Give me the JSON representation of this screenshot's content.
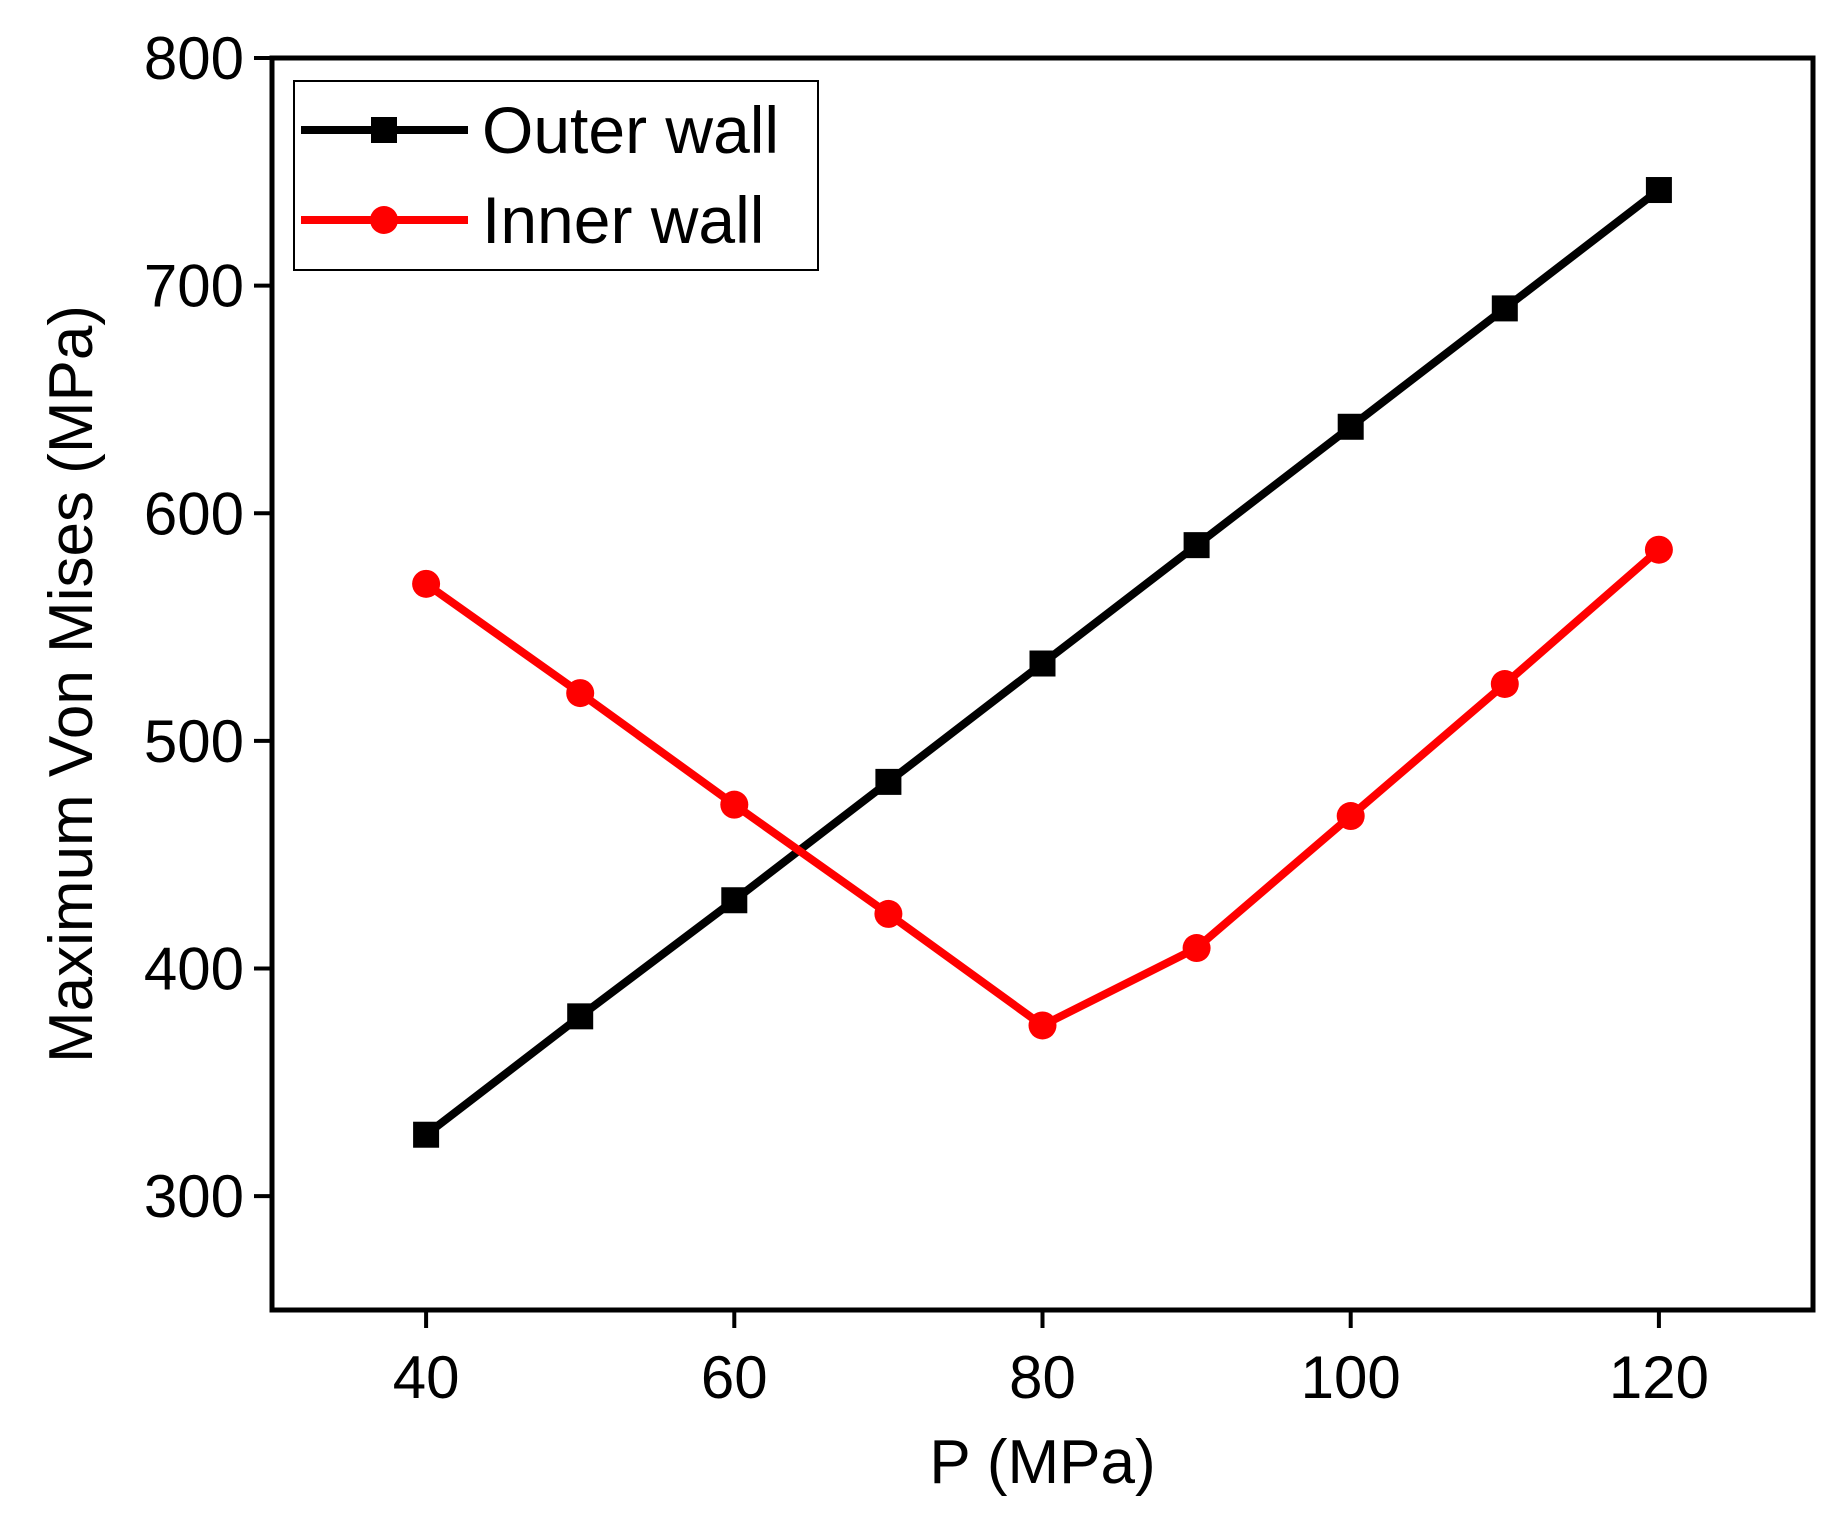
{
  "chart_data": {
    "type": "line",
    "title": "",
    "xlabel": "P (MPa)",
    "ylabel": "Maximum Von Mises (MPa)",
    "xlim": [
      30,
      130
    ],
    "ylim": [
      250,
      800
    ],
    "xticks": [
      40,
      60,
      80,
      100,
      120
    ],
    "yticks": [
      300,
      400,
      500,
      600,
      700,
      800
    ],
    "x": [
      40,
      50,
      60,
      70,
      80,
      90,
      100,
      110,
      120
    ],
    "grid": false,
    "legend_position": "top-left",
    "series": [
      {
        "name": "Outer wall",
        "color": "#000000",
        "marker": "square",
        "values": [
          327,
          379,
          430,
          482,
          534,
          586,
          638,
          690,
          742
        ]
      },
      {
        "name": "Inner wall",
        "color": "#ff0000",
        "marker": "circle",
        "values": [
          569,
          521,
          472,
          424,
          375,
          409,
          467,
          525,
          584
        ]
      }
    ]
  }
}
